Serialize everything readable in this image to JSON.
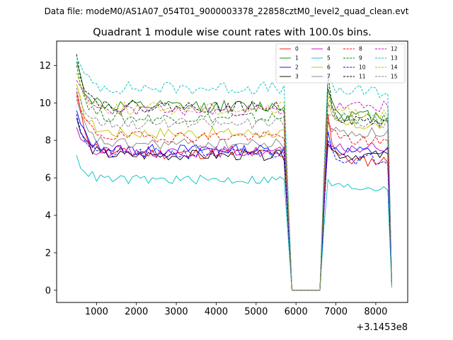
{
  "suptitle": "Data file: modeM0/AS1A07_054T01_9000003378_22858cztM0_level2_quad_clean.evt",
  "chart_data": {
    "type": "line",
    "title": "Quadrant 1 module wise count rates with 100.0s bins.",
    "xlabel": "",
    "ylabel": "",
    "x_offset_label": "+3.1453e8",
    "xlim": [
      0,
      8800
    ],
    "ylim": [
      -0.65,
      13.3
    ],
    "xticks": [
      1000,
      2000,
      3000,
      4000,
      5000,
      6000,
      7000,
      8000
    ],
    "xtick_labels": [
      "1000",
      "2000",
      "3000",
      "4000",
      "5000",
      "6000",
      "7000",
      "8000"
    ],
    "yticks": [
      0,
      2,
      4,
      6,
      8,
      10,
      12
    ],
    "ytick_labels": [
      "0",
      "2",
      "4",
      "6",
      "8",
      "10",
      "12"
    ],
    "legend_location": "top-right",
    "x_start": 500,
    "x_step": 100,
    "segment1_end": 5700,
    "gap_start": 5900,
    "gap_end": 6600,
    "segment2_start": 6800,
    "segment2_end": 8300,
    "last_x": 8400,
    "series": [
      {
        "name": "0",
        "color": "#ff0000",
        "dash": "solid",
        "start": 10.6,
        "base": 7.3,
        "base2": 6.9,
        "noise": 0.3,
        "tail": 0.35
      },
      {
        "name": "1",
        "color": "#008000",
        "dash": "solid",
        "start": 12.2,
        "base": 9.8,
        "base2": 9.3,
        "noise": 0.35,
        "tail": 0.3
      },
      {
        "name": "2",
        "color": "#0000ff",
        "dash": "solid",
        "start": 9.6,
        "base": 7.5,
        "base2": 7.4,
        "noise": 0.3,
        "tail": 0.3
      },
      {
        "name": "3",
        "color": "#000000",
        "dash": "solid",
        "start": 9.2,
        "base": 7.2,
        "base2": 7.2,
        "noise": 0.28,
        "tail": 0.3
      },
      {
        "name": "4",
        "color": "#bf00bf",
        "dash": "solid",
        "start": 8.7,
        "base": 7.4,
        "base2": 7.6,
        "noise": 0.3,
        "tail": 0.3
      },
      {
        "name": "5",
        "color": "#00bfbf",
        "dash": "solid",
        "start": 7.2,
        "base": 5.9,
        "base2": 5.5,
        "noise": 0.25,
        "tail": 0.15
      },
      {
        "name": "6",
        "color": "#bfbf00",
        "dash": "solid",
        "start": 11.0,
        "base": 8.4,
        "base2": 8.8,
        "noise": 0.3,
        "tail": 0.3
      },
      {
        "name": "7",
        "color": "#808080",
        "dash": "solid",
        "start": 10.2,
        "base": 7.8,
        "base2": 8.4,
        "noise": 0.3,
        "tail": 0.3
      },
      {
        "name": "8",
        "color": "#ff0000",
        "dash": "dashed",
        "start": 10.4,
        "base": 8.2,
        "base2": 8.0,
        "noise": 0.3,
        "tail": 0.3
      },
      {
        "name": "9",
        "color": "#008000",
        "dash": "dashed",
        "start": 12.0,
        "base": 9.2,
        "base2": 9.1,
        "noise": 0.3,
        "tail": 0.35
      },
      {
        "name": "10",
        "color": "#0000ff",
        "dash": "dashed",
        "start": 9.4,
        "base": 7.3,
        "base2": 7.0,
        "noise": 0.3,
        "tail": 0.3
      },
      {
        "name": "11",
        "color": "#000000",
        "dash": "dashed",
        "start": 12.6,
        "base": 9.8,
        "base2": 9.0,
        "noise": 0.3,
        "tail": 0.3
      },
      {
        "name": "12",
        "color": "#bf00bf",
        "dash": "dashed",
        "start": 11.2,
        "base": 9.6,
        "base2": 9.8,
        "noise": 0.3,
        "tail": 0.3
      },
      {
        "name": "13",
        "color": "#00bfbf",
        "dash": "dashed",
        "start": 12.4,
        "base": 10.8,
        "base2": 10.6,
        "noise": 0.35,
        "tail": 0.3
      },
      {
        "name": "14",
        "color": "#bfbf00",
        "dash": "dashed",
        "start": 11.6,
        "base": 9.7,
        "base2": 9.5,
        "noise": 0.35,
        "tail": 0.3
      },
      {
        "name": "15",
        "color": "#808080",
        "dash": "dashed",
        "start": 10.8,
        "base": 8.9,
        "base2": 9.0,
        "noise": 0.3,
        "tail": 0.3
      }
    ]
  }
}
